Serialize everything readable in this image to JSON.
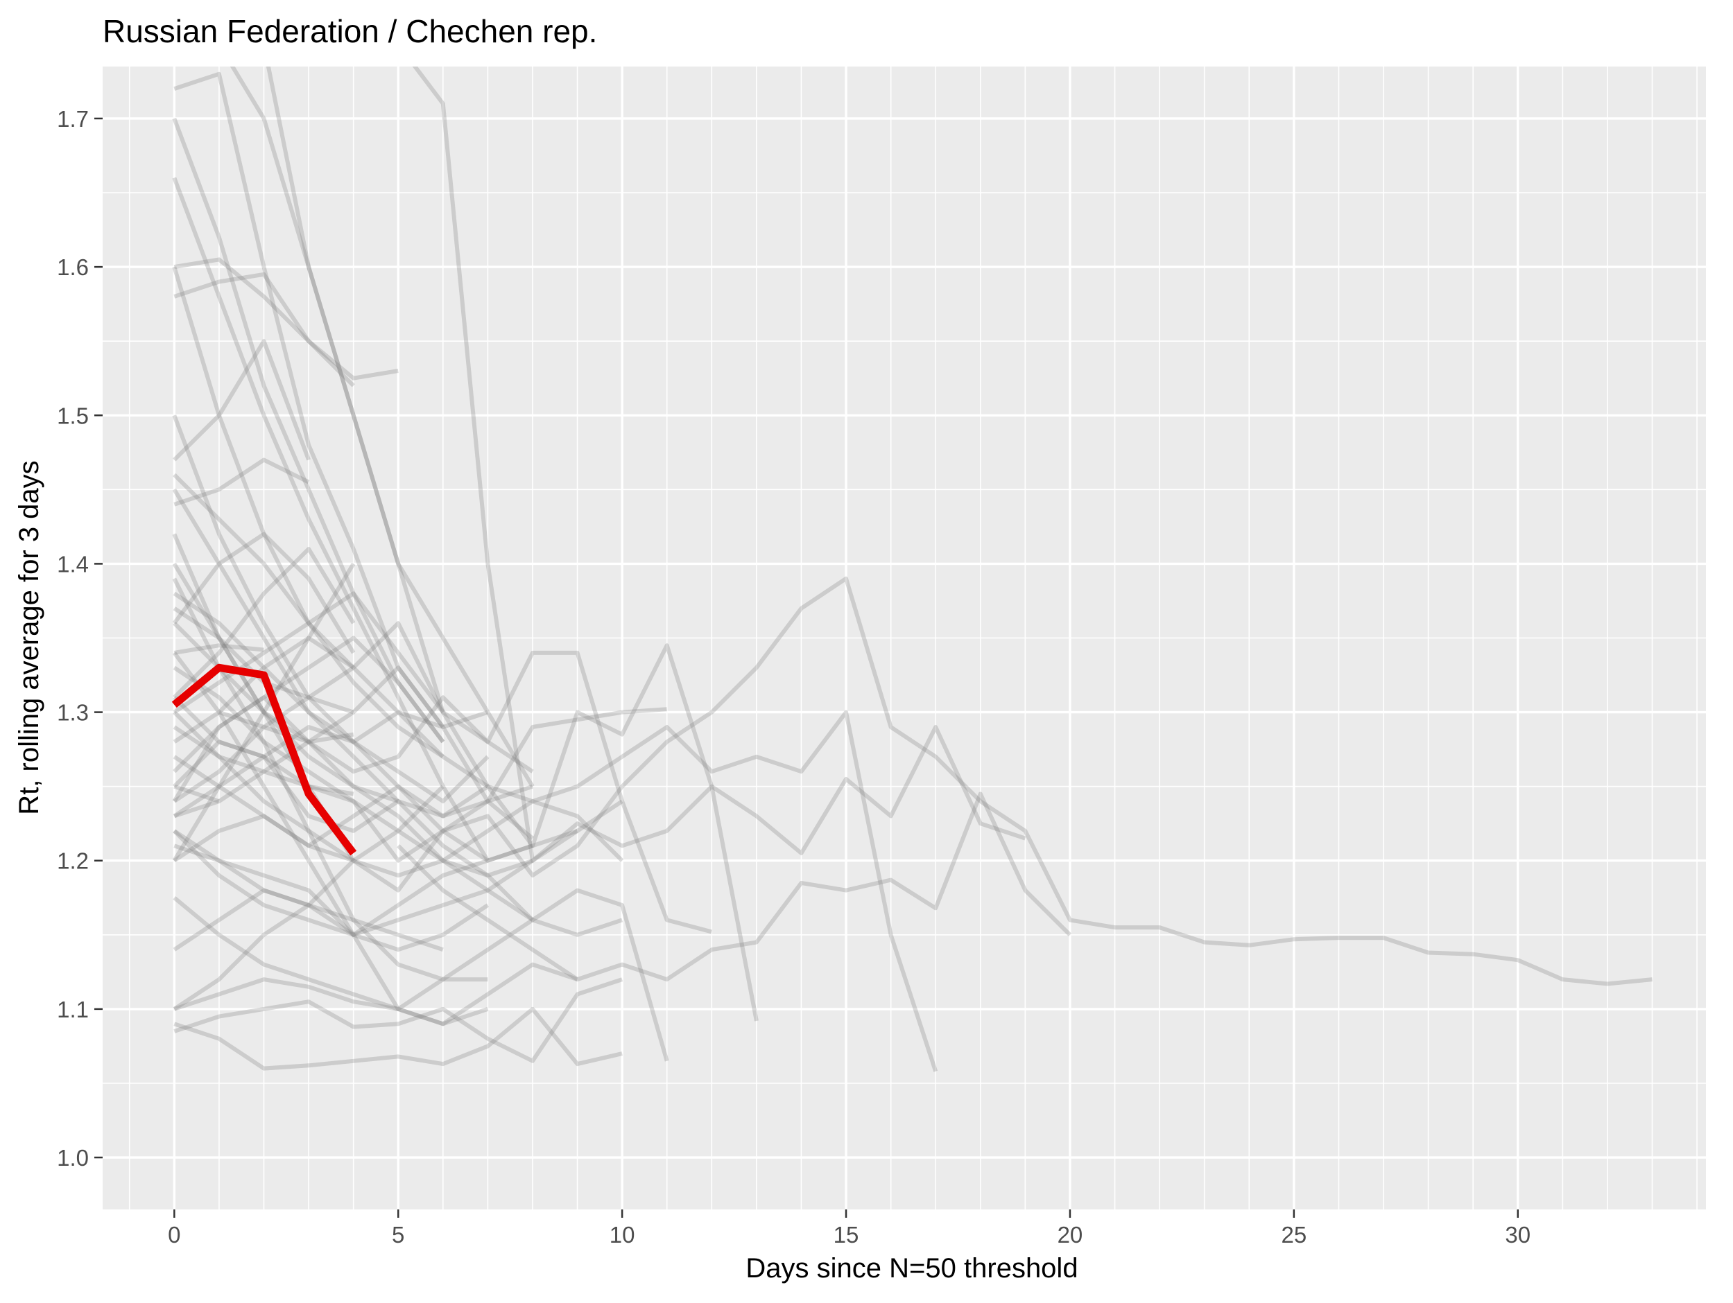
{
  "chart_data": {
    "type": "line",
    "title": "Russian Federation / Chechen rep.",
    "xlabel": "Days since N=50 threshold",
    "ylabel": "Rt, rolling average for 3 days",
    "xlim": [
      -1.6,
      34.2
    ],
    "ylim": [
      0.965,
      1.735
    ],
    "xticks": [
      0,
      5,
      10,
      15,
      20,
      25,
      30
    ],
    "yticks": [
      1.0,
      1.1,
      1.2,
      1.3,
      1.4,
      1.5,
      1.6,
      1.7
    ],
    "x_minor_step": 1,
    "y_minor_step": 0.05,
    "grid": true,
    "legend": "none",
    "colors": {
      "panel": "#ebebeb",
      "grid": "#ffffff",
      "background_series": "#7f7f7f",
      "highlight": "#e60000",
      "text": "#000000",
      "tick_text": "#4d4d4d"
    },
    "highlight_series": {
      "name": "Chechen rep.",
      "x": [
        0,
        1,
        2,
        3,
        4
      ],
      "y": [
        1.305,
        1.33,
        1.325,
        1.245,
        1.205
      ]
    },
    "background_series": [
      {
        "x": [
          0,
          1,
          2,
          3,
          4,
          5,
          6,
          7,
          8,
          9,
          10,
          11,
          12,
          13,
          14,
          15,
          16,
          17,
          18,
          19,
          20,
          21,
          22,
          23,
          24,
          25,
          26,
          27,
          28,
          29,
          30,
          31,
          32,
          33
        ],
        "y": [
          1.31,
          1.28,
          1.27,
          1.25,
          1.24,
          1.2,
          1.22,
          1.23,
          1.19,
          1.21,
          1.25,
          1.28,
          1.3,
          1.33,
          1.37,
          1.39,
          1.29,
          1.27,
          1.24,
          1.22,
          1.16,
          1.155,
          1.155,
          1.145,
          1.143,
          1.147,
          1.148,
          1.148,
          1.138,
          1.137,
          1.133,
          1.12,
          1.117,
          1.12
        ]
      },
      {
        "x": [
          0,
          1,
          2,
          3,
          4,
          5,
          6,
          7,
          8,
          9,
          10,
          11,
          12,
          13,
          14,
          15,
          16,
          17
        ],
        "y": [
          1.3,
          1.27,
          1.24,
          1.22,
          1.2,
          1.19,
          1.2,
          1.22,
          1.24,
          1.25,
          1.27,
          1.29,
          1.26,
          1.27,
          1.26,
          1.3,
          1.15,
          1.058
        ]
      },
      {
        "x": [
          0,
          1,
          2,
          3,
          4,
          5,
          6,
          7,
          8,
          9,
          10,
          11,
          12,
          13,
          14,
          15,
          16,
          17,
          18,
          19
        ],
        "y": [
          1.22,
          1.19,
          1.17,
          1.16,
          1.15,
          1.16,
          1.17,
          1.18,
          1.2,
          1.225,
          1.21,
          1.22,
          1.25,
          1.23,
          1.205,
          1.255,
          1.23,
          1.29,
          1.225,
          1.215
        ]
      },
      {
        "x": [
          5,
          6,
          7,
          8,
          9,
          10,
          11,
          12,
          13,
          14,
          15,
          16,
          17,
          18,
          19,
          20
        ],
        "y": [
          1.21,
          1.18,
          1.16,
          1.14,
          1.12,
          1.13,
          1.12,
          1.14,
          1.145,
          1.185,
          1.18,
          1.187,
          1.168,
          1.245,
          1.18,
          1.15
        ]
      },
      {
        "x": [
          0,
          1,
          2,
          3,
          4,
          5,
          6,
          7,
          8,
          9,
          10,
          11,
          12
        ],
        "y": [
          1.24,
          1.29,
          1.31,
          1.28,
          1.26,
          1.27,
          1.31,
          1.28,
          1.34,
          1.34,
          1.24,
          1.16,
          1.152
        ]
      },
      {
        "x": [
          0,
          1,
          2,
          3,
          4,
          5,
          6,
          7,
          8,
          9,
          10,
          11,
          12,
          13
        ],
        "y": [
          1.25,
          1.28,
          1.27,
          1.23,
          1.22,
          1.24,
          1.23,
          1.25,
          1.21,
          1.3,
          1.285,
          1.345,
          1.25,
          1.092
        ]
      },
      {
        "x": [
          0,
          1,
          2,
          3,
          4,
          5,
          6,
          7,
          8,
          9,
          10,
          11
        ],
        "y": [
          1.2,
          1.22,
          1.23,
          1.21,
          1.2,
          1.18,
          1.22,
          1.24,
          1.29,
          1.295,
          1.3,
          1.302
        ]
      },
      {
        "x": [
          0,
          1,
          2,
          3,
          4,
          5,
          6,
          7,
          8,
          9,
          10,
          11
        ],
        "y": [
          1.175,
          1.15,
          1.13,
          1.12,
          1.11,
          1.1,
          1.12,
          1.14,
          1.16,
          1.18,
          1.17,
          1.065
        ]
      },
      {
        "x": [
          0,
          1,
          2,
          3,
          4,
          5,
          6,
          7,
          8,
          9,
          10
        ],
        "y": [
          1.09,
          1.08,
          1.06,
          1.062,
          1.065,
          1.068,
          1.063,
          1.075,
          1.1,
          1.063,
          1.07
        ]
      },
      {
        "x": [
          0,
          1,
          2,
          3,
          4,
          5,
          6,
          7,
          8,
          9,
          10
        ],
        "y": [
          1.085,
          1.095,
          1.1,
          1.105,
          1.088,
          1.09,
          1.1,
          1.08,
          1.065,
          1.11,
          1.12
        ]
      },
      {
        "x": [
          0,
          1,
          2,
          3,
          4,
          5,
          6,
          7,
          8,
          9
        ],
        "y": [
          1.1,
          1.11,
          1.12,
          1.115,
          1.105,
          1.1,
          1.09,
          1.11,
          1.13,
          1.12
        ]
      },
      {
        "x": [
          0,
          1,
          2,
          3,
          4,
          5,
          6,
          7,
          8,
          9
        ],
        "y": [
          1.14,
          1.16,
          1.18,
          1.17,
          1.15,
          1.17,
          1.19,
          1.2,
          1.21,
          1.22
        ]
      },
      {
        "x": [
          0,
          1,
          2,
          3,
          4,
          5,
          6,
          7,
          8,
          9,
          10
        ],
        "y": [
          1.33,
          1.31,
          1.28,
          1.26,
          1.24,
          1.22,
          1.2,
          1.19,
          1.16,
          1.15,
          1.16
        ]
      },
      {
        "x": [
          0,
          1,
          2,
          3,
          4,
          5,
          6,
          7,
          8
        ],
        "y": [
          1.36,
          1.33,
          1.3,
          1.27,
          1.25,
          1.23,
          1.2,
          1.18,
          1.16
        ]
      },
      {
        "x": [
          0,
          1,
          2,
          3,
          4,
          5,
          6,
          7,
          8
        ],
        "y": [
          1.38,
          1.36,
          1.33,
          1.3,
          1.28,
          1.25,
          1.23,
          1.24,
          1.25
        ]
      },
      {
        "x": [
          0,
          1,
          2,
          3,
          4,
          5,
          6,
          7,
          8
        ],
        "y": [
          1.45,
          1.4,
          1.35,
          1.3,
          1.27,
          1.24,
          1.21,
          1.19,
          1.2
        ]
      },
      {
        "x": [
          0,
          1,
          2,
          3,
          4,
          5,
          6,
          7
        ],
        "y": [
          1.5,
          1.42,
          1.36,
          1.31,
          1.28,
          1.26,
          1.24,
          1.27
        ]
      },
      {
        "x": [
          0,
          1,
          2,
          3,
          4,
          5,
          6,
          7
        ],
        "y": [
          1.6,
          1.5,
          1.42,
          1.36,
          1.32,
          1.29,
          1.27,
          1.25
        ]
      },
      {
        "x": [
          0,
          1,
          2,
          3,
          4,
          5,
          6,
          7
        ],
        "y": [
          1.66,
          1.58,
          1.5,
          1.43,
          1.37,
          1.31,
          1.25,
          1.2
        ]
      },
      {
        "x": [
          0,
          1,
          2,
          3,
          4,
          5,
          6
        ],
        "y": [
          1.7,
          1.62,
          1.52,
          1.45,
          1.38,
          1.32,
          1.28
        ]
      },
      {
        "x": [
          0,
          1,
          2,
          3,
          4,
          5,
          6,
          7
        ],
        "y": [
          1.72,
          1.73,
          1.6,
          1.48,
          1.41,
          1.33,
          1.29,
          1.3
        ]
      },
      {
        "x": [
          1,
          2,
          3,
          4,
          5,
          6,
          7,
          8,
          9,
          10
        ],
        "y": [
          1.75,
          1.7,
          1.6,
          1.5,
          1.4,
          1.3,
          1.25,
          1.24,
          1.23,
          1.2
        ]
      },
      {
        "x": [
          2,
          3,
          4,
          5,
          6,
          7,
          8
        ],
        "y": [
          1.75,
          1.6,
          1.5,
          1.4,
          1.35,
          1.3,
          1.25
        ]
      },
      {
        "x": [
          0,
          1,
          2,
          3,
          4,
          5
        ],
        "y": [
          1.42,
          1.35,
          1.3,
          1.28,
          1.25,
          1.24
        ]
      },
      {
        "x": [
          0,
          1,
          2,
          3,
          4,
          5
        ],
        "y": [
          1.58,
          1.59,
          1.595,
          1.55,
          1.525,
          1.53
        ]
      },
      {
        "x": [
          0,
          1,
          2,
          3,
          4
        ],
        "y": [
          1.6,
          1.605,
          1.58,
          1.55,
          1.52
        ]
      },
      {
        "x": [
          3,
          4,
          5,
          6,
          7,
          8,
          9,
          10
        ],
        "y": [
          1.75,
          1.74,
          1.75,
          1.71,
          1.4,
          1.2,
          1.22,
          1.24
        ]
      },
      {
        "x": [
          0,
          1,
          2,
          3,
          4,
          5,
          6,
          7,
          8
        ],
        "y": [
          1.23,
          1.25,
          1.27,
          1.29,
          1.28,
          1.3,
          1.29,
          1.24,
          1.215
        ]
      },
      {
        "x": [
          0,
          1,
          2,
          3,
          4,
          5,
          6,
          7
        ],
        "y": [
          1.21,
          1.2,
          1.19,
          1.18,
          1.15,
          1.14,
          1.15,
          1.17
        ]
      },
      {
        "x": [
          0,
          1,
          2,
          3,
          4,
          5,
          6,
          7,
          8
        ],
        "y": [
          1.27,
          1.25,
          1.23,
          1.21,
          1.23,
          1.25,
          1.22,
          1.2,
          1.21
        ]
      },
      {
        "x": [
          0,
          1,
          2,
          3,
          4,
          5,
          6,
          7,
          8
        ],
        "y": [
          1.37,
          1.35,
          1.32,
          1.31,
          1.33,
          1.36,
          1.3,
          1.28,
          1.26
        ]
      },
      {
        "x": [
          0,
          1,
          2,
          3,
          4,
          5,
          6,
          7
        ],
        "y": [
          1.34,
          1.3,
          1.25,
          1.2,
          1.15,
          1.1,
          1.09,
          1.1
        ]
      },
      {
        "x": [
          0,
          1,
          2,
          3,
          4,
          5,
          6,
          7
        ],
        "y": [
          1.39,
          1.33,
          1.28,
          1.22,
          1.16,
          1.13,
          1.12,
          1.12
        ]
      },
      {
        "x": [
          0,
          1,
          2,
          3,
          4,
          5,
          6
        ],
        "y": [
          1.46,
          1.43,
          1.4,
          1.36,
          1.33,
          1.3,
          1.27
        ]
      },
      {
        "x": [
          0,
          1,
          2,
          3,
          4,
          5,
          6
        ],
        "y": [
          1.3,
          1.32,
          1.34,
          1.36,
          1.38,
          1.34,
          1.3
        ]
      },
      {
        "x": [
          0,
          1,
          2,
          3,
          4,
          5,
          6
        ],
        "y": [
          1.26,
          1.29,
          1.31,
          1.33,
          1.35,
          1.32,
          1.28
        ]
      },
      {
        "x": [
          0,
          1,
          2,
          3,
          4,
          5,
          6
        ],
        "y": [
          1.23,
          1.24,
          1.26,
          1.28,
          1.3,
          1.33,
          1.29
        ]
      },
      {
        "x": [
          0,
          1,
          2,
          3,
          4,
          5,
          6
        ],
        "y": [
          1.22,
          1.2,
          1.18,
          1.17,
          1.16,
          1.15,
          1.14
        ]
      },
      {
        "x": [
          0,
          1,
          2,
          3,
          4,
          5,
          6
        ],
        "y": [
          1.1,
          1.12,
          1.15,
          1.17,
          1.2,
          1.22,
          1.25
        ]
      },
      {
        "x": [
          0,
          1,
          2,
          3,
          4
        ],
        "y": [
          1.4,
          1.35,
          1.3,
          1.25,
          1.2
        ]
      },
      {
        "x": [
          0,
          1,
          2,
          3,
          4
        ],
        "y": [
          1.36,
          1.4,
          1.42,
          1.39,
          1.34
        ]
      },
      {
        "x": [
          0,
          1,
          2,
          3,
          4
        ],
        "y": [
          1.29,
          1.27,
          1.26,
          1.25,
          1.245
        ]
      },
      {
        "x": [
          0,
          1,
          2,
          3,
          4
        ],
        "y": [
          1.24,
          1.26,
          1.29,
          1.31,
          1.3
        ]
      },
      {
        "x": [
          0,
          1,
          2,
          3,
          4
        ],
        "y": [
          1.31,
          1.34,
          1.38,
          1.41,
          1.36
        ]
      },
      {
        "x": [
          0,
          1,
          2,
          3,
          4
        ],
        "y": [
          1.28,
          1.3,
          1.33,
          1.35,
          1.33
        ]
      },
      {
        "x": [
          0,
          1,
          2,
          3,
          4
        ],
        "y": [
          1.2,
          1.25,
          1.3,
          1.35,
          1.4
        ]
      },
      {
        "x": [
          0,
          1,
          2,
          3
        ],
        "y": [
          1.47,
          1.5,
          1.55,
          1.47
        ]
      },
      {
        "x": [
          0,
          1,
          2,
          3
        ],
        "y": [
          1.44,
          1.45,
          1.47,
          1.455
        ]
      },
      {
        "x": [
          0,
          1,
          2
        ],
        "y": [
          1.34,
          1.345,
          1.342
        ]
      },
      {
        "x": [
          1,
          2,
          3,
          4
        ],
        "y": [
          1.3,
          1.29,
          1.28,
          1.285
        ]
      },
      {
        "x": [
          0,
          1
        ],
        "y": [
          1.25,
          1.24
        ]
      }
    ]
  }
}
